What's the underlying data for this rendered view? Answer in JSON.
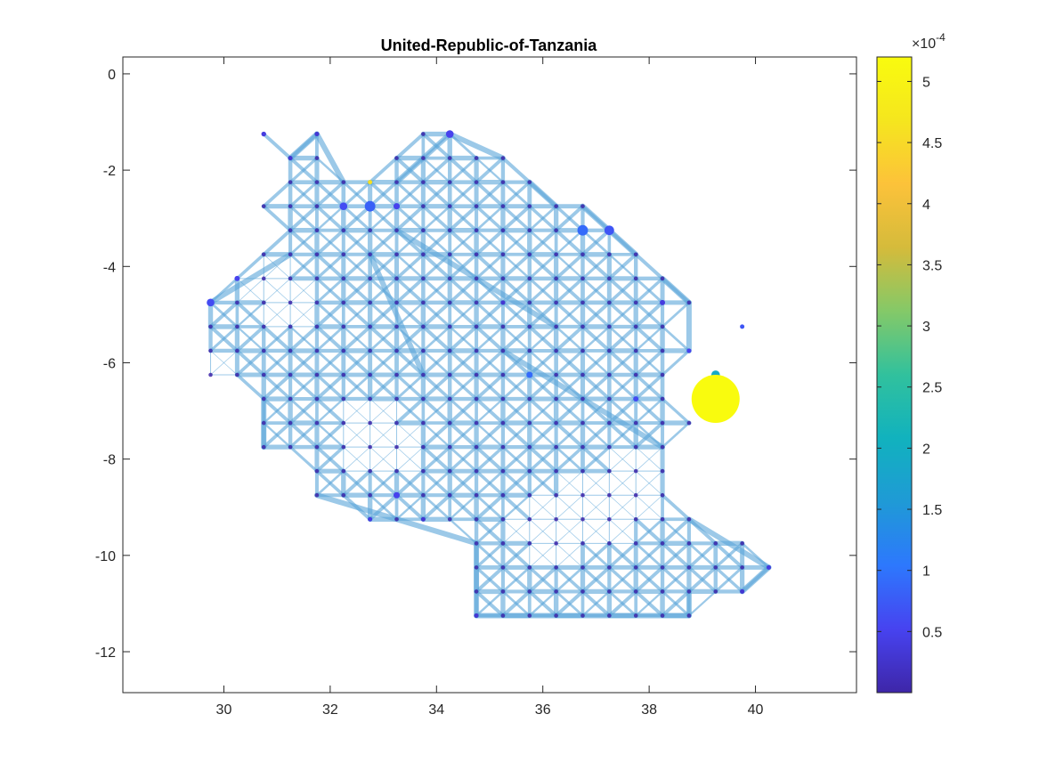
{
  "chart_data": {
    "type": "scatter",
    "title": "United-Republic-of-Tanzania",
    "xlabel": "",
    "ylabel": "",
    "xlim": [
      28.1,
      41.9
    ],
    "ylim": [
      -12.85,
      0.35
    ],
    "xticks": [
      30,
      32,
      34,
      36,
      38,
      40
    ],
    "xtick_labels": [
      "30",
      "32",
      "34",
      "36",
      "38",
      "40"
    ],
    "yticks": [
      0,
      -2,
      -4,
      -6,
      -8,
      -10,
      -12
    ],
    "ytick_labels": [
      "0",
      "-2",
      "-4",
      "-6",
      "-8",
      "-10",
      "-12"
    ],
    "grid": false,
    "network": {
      "description_type": "grid-network",
      "node_spacing": 0.5,
      "edge_color": "#5aa5d8",
      "node_color_low": "#3e26a8"
    },
    "regions": [
      [
        [
          30.75,
          -1.25
        ],
        [
          31.75,
          -1.25
        ],
        [
          31.75,
          -1.75
        ],
        [
          32.75,
          -2.25
        ],
        [
          33.75,
          -1.25
        ],
        [
          34.25,
          -1.25
        ],
        [
          35.25,
          -1.75
        ],
        [
          35.75,
          -2.25
        ],
        [
          36.25,
          -2.75
        ],
        [
          36.75,
          -2.75
        ],
        [
          37.75,
          -3.75
        ],
        [
          38.75,
          -4.75
        ],
        [
          38.75,
          -5.75
        ],
        [
          38.75,
          -7.25
        ],
        [
          38.75,
          -9.25
        ],
        [
          39.25,
          -9.75
        ],
        [
          39.75,
          -9.75
        ],
        [
          40.25,
          -10.25
        ],
        [
          39.75,
          -10.75
        ],
        [
          38.75,
          -10.75
        ],
        [
          38.75,
          -11.25
        ],
        [
          34.75,
          -11.25
        ],
        [
          34.75,
          -9.75
        ],
        [
          34.25,
          -9.25
        ],
        [
          33.75,
          -9.25
        ],
        [
          32.75,
          -9.25
        ],
        [
          31.75,
          -8.75
        ],
        [
          30.75,
          -7.75
        ],
        [
          30.75,
          -7.25
        ],
        [
          29.75,
          -6.25
        ],
        [
          29.75,
          -4.75
        ],
        [
          30.75,
          -3.75
        ],
        [
          31.25,
          -3.25
        ],
        [
          30.75,
          -2.75
        ],
        [
          31.25,
          -2.25
        ],
        [
          31.25,
          -1.75
        ],
        [
          30.75,
          -1.25
        ]
      ]
    ],
    "sparse_regions": [
      [
        [
          30.25,
          -4.25
        ],
        [
          31.25,
          -3.75
        ],
        [
          31.75,
          -5.25
        ],
        [
          30.75,
          -5.25
        ]
      ],
      [
        [
          32.25,
          -6.75
        ],
        [
          33.25,
          -6.75
        ],
        [
          33.75,
          -8.25
        ],
        [
          32.25,
          -8.25
        ]
      ],
      [
        [
          35.25,
          -9.25
        ],
        [
          36.75,
          -8.25
        ],
        [
          37.75,
          -8.25
        ],
        [
          37.75,
          -9.75
        ],
        [
          35.75,
          -10.25
        ]
      ],
      [
        [
          37.25,
          -7.75
        ],
        [
          38.25,
          -7.75
        ],
        [
          38.25,
          -9.25
        ],
        [
          37.25,
          -9.25
        ]
      ],
      [
        [
          29.75,
          -5.75
        ],
        [
          30.25,
          -5.75
        ],
        [
          30.25,
          -6.25
        ],
        [
          29.75,
          -6.25
        ]
      ]
    ],
    "thick_edges": [
      [
        [
          31.25,
          -1.75
        ],
        [
          31.75,
          -1.25
        ]
      ],
      [
        [
          31.75,
          -1.25
        ],
        [
          32.25,
          -2.25
        ]
      ],
      [
        [
          33.25,
          -2.25
        ],
        [
          34.25,
          -1.25
        ]
      ],
      [
        [
          34.25,
          -1.25
        ],
        [
          35.25,
          -1.75
        ]
      ],
      [
        [
          36.75,
          -2.75
        ],
        [
          37.75,
          -3.75
        ]
      ],
      [
        [
          35.75,
          -2.25
        ],
        [
          36.25,
          -2.75
        ]
      ],
      [
        [
          38.25,
          -4.25
        ],
        [
          38.75,
          -4.75
        ]
      ],
      [
        [
          38.75,
          -4.75
        ],
        [
          38.75,
          -5.75
        ]
      ],
      [
        [
          38.75,
          -9.25
        ],
        [
          40.25,
          -10.25
        ]
      ],
      [
        [
          39.75,
          -10.75
        ],
        [
          40.25,
          -10.25
        ]
      ],
      [
        [
          31.75,
          -8.75
        ],
        [
          34.75,
          -9.75
        ]
      ],
      [
        [
          34.75,
          -9.75
        ],
        [
          34.75,
          -11.25
        ]
      ],
      [
        [
          34.75,
          -11.25
        ],
        [
          38.75,
          -11.25
        ]
      ],
      [
        [
          38.75,
          -11.25
        ],
        [
          38.75,
          -10.75
        ]
      ],
      [
        [
          30.75,
          -7.75
        ],
        [
          30.75,
          -6.75
        ]
      ],
      [
        [
          29.75,
          -4.75
        ],
        [
          31.25,
          -3.75
        ]
      ],
      [
        [
          33.25,
          -3.25
        ],
        [
          36.25,
          -5.25
        ]
      ],
      [
        [
          35.25,
          -5.75
        ],
        [
          38.25,
          -7.75
        ]
      ],
      [
        [
          32.75,
          -3.75
        ],
        [
          33.75,
          -6.25
        ]
      ]
    ],
    "points": [
      {
        "x": 39.25,
        "y": -6.75,
        "value": 0.00052,
        "size": 1.0
      },
      {
        "x": 39.25,
        "y": -6.25,
        "value": 0.00019,
        "size": 0.18
      },
      {
        "x": 32.75,
        "y": -2.25,
        "value": 0.00046,
        "size": 0.09
      },
      {
        "x": 32.75,
        "y": -2.75,
        "value": 8e-05,
        "size": 0.22
      },
      {
        "x": 36.75,
        "y": -3.25,
        "value": 9e-05,
        "size": 0.22
      },
      {
        "x": 37.25,
        "y": -3.25,
        "value": 7e-05,
        "size": 0.2
      },
      {
        "x": 34.25,
        "y": -1.25,
        "value": 5e-05,
        "size": 0.16
      },
      {
        "x": 32.25,
        "y": -2.75,
        "value": 6e-05,
        "size": 0.16
      },
      {
        "x": 33.25,
        "y": -2.75,
        "value": 5e-05,
        "size": 0.13
      },
      {
        "x": 29.75,
        "y": -4.75,
        "value": 6e-05,
        "size": 0.16
      },
      {
        "x": 30.25,
        "y": -4.25,
        "value": 5e-05,
        "size": 0.11
      },
      {
        "x": 30.75,
        "y": -1.25,
        "value": 4e-05,
        "size": 0.1
      },
      {
        "x": 33.25,
        "y": -8.75,
        "value": 5e-05,
        "size": 0.13
      },
      {
        "x": 35.75,
        "y": -6.25,
        "value": 9e-05,
        "size": 0.13
      },
      {
        "x": 37.75,
        "y": -6.75,
        "value": 6e-05,
        "size": 0.11
      },
      {
        "x": 38.25,
        "y": -4.75,
        "value": 4e-05,
        "size": 0.11
      },
      {
        "x": 39.75,
        "y": -5.25,
        "value": 7e-05,
        "size": 0.09
      },
      {
        "x": 38.75,
        "y": -5.75,
        "value": 5e-05,
        "size": 0.09
      },
      {
        "x": 31.25,
        "y": -1.75,
        "value": 3e-05,
        "size": 0.09
      },
      {
        "x": 31.75,
        "y": -1.25,
        "value": 3e-05,
        "size": 0.09
      },
      {
        "x": 32.75,
        "y": -9.25,
        "value": 4e-05,
        "size": 0.09
      },
      {
        "x": 33.75,
        "y": -9.25,
        "value": 3e-05,
        "size": 0.09
      },
      {
        "x": 40.25,
        "y": -10.25,
        "value": 4e-05,
        "size": 0.09
      },
      {
        "x": 39.75,
        "y": -10.75,
        "value": 3e-05,
        "size": 0.09
      },
      {
        "x": 34.75,
        "y": -11.25,
        "value": 3e-05,
        "size": 0.09
      },
      {
        "x": 35.25,
        "y": -4.75,
        "value": 3e-05,
        "size": 0.09
      }
    ],
    "colorbar": {
      "min": 0.0,
      "max": 5.2,
      "ticks": [
        0.5,
        1,
        1.5,
        2,
        2.5,
        3,
        3.5,
        4,
        4.5,
        5
      ],
      "tick_labels": [
        "0.5",
        "1",
        "1.5",
        "2",
        "2.5",
        "3",
        "3.5",
        "4",
        "4.5",
        "5"
      ],
      "exponent_label": "×10",
      "exponent_power": "-4",
      "colormap": "parula",
      "stops": [
        "#3e26a8",
        "#4743f0",
        "#2d78fd",
        "#1f9ad6",
        "#11b2be",
        "#31c19d",
        "#84c968",
        "#d5bb3b",
        "#fcc23a",
        "#f5e61e",
        "#f9fb0e"
      ]
    }
  }
}
